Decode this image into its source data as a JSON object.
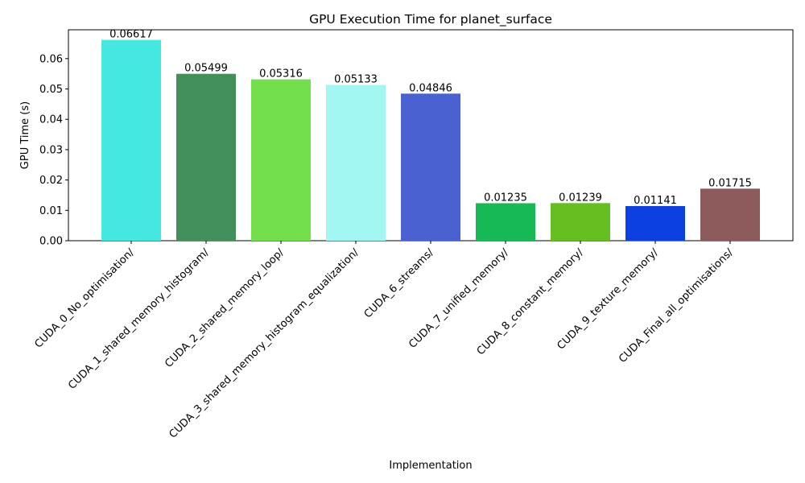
{
  "chart_data": {
    "type": "bar",
    "title": "GPU Execution Time for planet_surface",
    "xlabel": "Implementation",
    "ylabel": "GPU Time (s)",
    "ylim": [
      0,
      0.0695
    ],
    "yticks": [
      0.0,
      0.01,
      0.02,
      0.03,
      0.04,
      0.05,
      0.06
    ],
    "ytick_labels": [
      "0.00",
      "0.01",
      "0.02",
      "0.03",
      "0.04",
      "0.05",
      "0.06"
    ],
    "grid": false,
    "categories": [
      "CUDA_0_No_optimisation/",
      "CUDA_1_shared_memory_histogram/",
      "CUDA_2_shared_memory_loop/",
      "CUDA_3_shared_memory_histogram_equalization/",
      "CUDA_6_streams/",
      "CUDA_7_unified_memory/",
      "CUDA_8_constant_memory/",
      "CUDA_9_texture_memory/",
      "CUDA_Final_all_optimisations/"
    ],
    "values": [
      0.06617,
      0.05499,
      0.05316,
      0.05133,
      0.04846,
      0.01235,
      0.01239,
      0.01141,
      0.01715
    ],
    "value_labels": [
      "0.06617",
      "0.05499",
      "0.05316",
      "0.05133",
      "0.04846",
      "0.01235",
      "0.01239",
      "0.01141",
      "0.01715"
    ],
    "colors": [
      "#44e8e0",
      "#428f5a",
      "#73df4d",
      "#a3f7f2",
      "#4961d1",
      "#16b954",
      "#65bf21",
      "#0c40e1",
      "#8c5a5a"
    ]
  }
}
